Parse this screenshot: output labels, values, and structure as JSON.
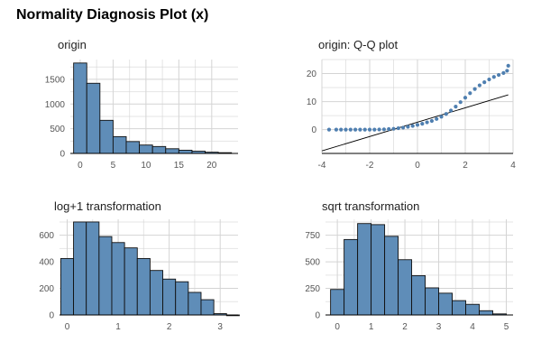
{
  "title": "Normality Diagnosis Plot (x)",
  "colors": {
    "bar_fill": "#5f8db8",
    "bar_outline": "#111111",
    "point": "#4f7fb0",
    "grid": "#d4d4d4"
  },
  "chart_data": [
    {
      "id": "origin",
      "type": "bar",
      "title": "origin",
      "xlabel": "",
      "ylabel": "",
      "x_ticks": [
        0,
        5,
        10,
        15,
        20
      ],
      "y_ticks": [
        0,
        500,
        1000,
        1500
      ],
      "xlim": [
        -1.5,
        24
      ],
      "ylim": [
        0,
        1900
      ],
      "bin_width": 2,
      "bin_starts": [
        -1,
        1,
        3,
        5,
        7,
        9,
        11,
        13,
        15,
        17,
        19,
        21
      ],
      "values": [
        1830,
        1420,
        670,
        340,
        240,
        170,
        140,
        95,
        65,
        45,
        25,
        15
      ],
      "grid": true
    },
    {
      "id": "qq",
      "type": "scatter",
      "title": "origin: Q-Q plot",
      "xlabel": "",
      "ylabel": "",
      "x_ticks": [
        -4,
        -2,
        0,
        2,
        4
      ],
      "y_ticks": [
        0,
        10,
        20
      ],
      "xlim": [
        -4,
        4
      ],
      "ylim": [
        -8.5,
        25
      ],
      "points": [
        [
          -3.7,
          0.0
        ],
        [
          -3.4,
          0.0
        ],
        [
          -3.2,
          0.0
        ],
        [
          -3.0,
          0.0
        ],
        [
          -2.8,
          0.0
        ],
        [
          -2.6,
          0.0
        ],
        [
          -2.4,
          0.0
        ],
        [
          -2.2,
          0.0
        ],
        [
          -2.0,
          0.0
        ],
        [
          -1.8,
          0.0
        ],
        [
          -1.6,
          0.05
        ],
        [
          -1.4,
          0.1
        ],
        [
          -1.2,
          0.2
        ],
        [
          -1.0,
          0.3
        ],
        [
          -0.8,
          0.5
        ],
        [
          -0.6,
          0.7
        ],
        [
          -0.4,
          1.0
        ],
        [
          -0.2,
          1.3
        ],
        [
          0.0,
          1.7
        ],
        [
          0.2,
          2.1
        ],
        [
          0.4,
          2.6
        ],
        [
          0.6,
          3.1
        ],
        [
          0.8,
          3.8
        ],
        [
          1.0,
          4.6
        ],
        [
          1.2,
          5.6
        ],
        [
          1.4,
          6.8
        ],
        [
          1.6,
          8.2
        ],
        [
          1.8,
          9.8
        ],
        [
          2.0,
          11.4
        ],
        [
          2.2,
          13.0
        ],
        [
          2.4,
          14.5
        ],
        [
          2.6,
          15.8
        ],
        [
          2.8,
          16.9
        ],
        [
          3.0,
          17.9
        ],
        [
          3.2,
          18.8
        ],
        [
          3.4,
          19.5
        ],
        [
          3.6,
          20.2
        ],
        [
          3.75,
          21.0
        ],
        [
          3.8,
          22.8
        ]
      ],
      "reference_line": {
        "x": [
          -4,
          3.8
        ],
        "y": [
          -7.6,
          12.4
        ]
      },
      "grid": true
    },
    {
      "id": "log1",
      "type": "bar",
      "title": "log+1 transformation",
      "xlabel": "",
      "ylabel": "",
      "x_ticks": [
        0,
        1,
        2,
        3
      ],
      "y_ticks": [
        0,
        200,
        400,
        600
      ],
      "xlim": [
        -0.15,
        3.35
      ],
      "ylim": [
        0,
        720
      ],
      "bin_width": 0.25,
      "bin_starts": [
        -0.125,
        0.125,
        0.375,
        0.625,
        0.875,
        1.125,
        1.375,
        1.625,
        1.875,
        2.125,
        2.375,
        2.625,
        2.875,
        3.125
      ],
      "values": [
        425,
        700,
        700,
        590,
        545,
        505,
        425,
        335,
        270,
        250,
        170,
        115,
        10,
        0
      ],
      "grid": true
    },
    {
      "id": "sqrt",
      "type": "bar",
      "title": "sqrt transformation",
      "xlabel": "",
      "ylabel": "",
      "x_ticks": [
        0,
        1,
        2,
        3,
        4,
        5
      ],
      "y_ticks": [
        0,
        250,
        500,
        750
      ],
      "xlim": [
        -0.35,
        5.2
      ],
      "ylim": [
        0,
        900
      ],
      "bin_width": 0.4,
      "bin_starts": [
        -0.2,
        0.2,
        0.6,
        1.0,
        1.4,
        1.8,
        2.2,
        2.6,
        3.0,
        3.4,
        3.8,
        4.2,
        4.6
      ],
      "values": [
        240,
        710,
        860,
        850,
        740,
        520,
        370,
        255,
        205,
        135,
        100,
        40,
        10
      ],
      "grid": true
    }
  ]
}
